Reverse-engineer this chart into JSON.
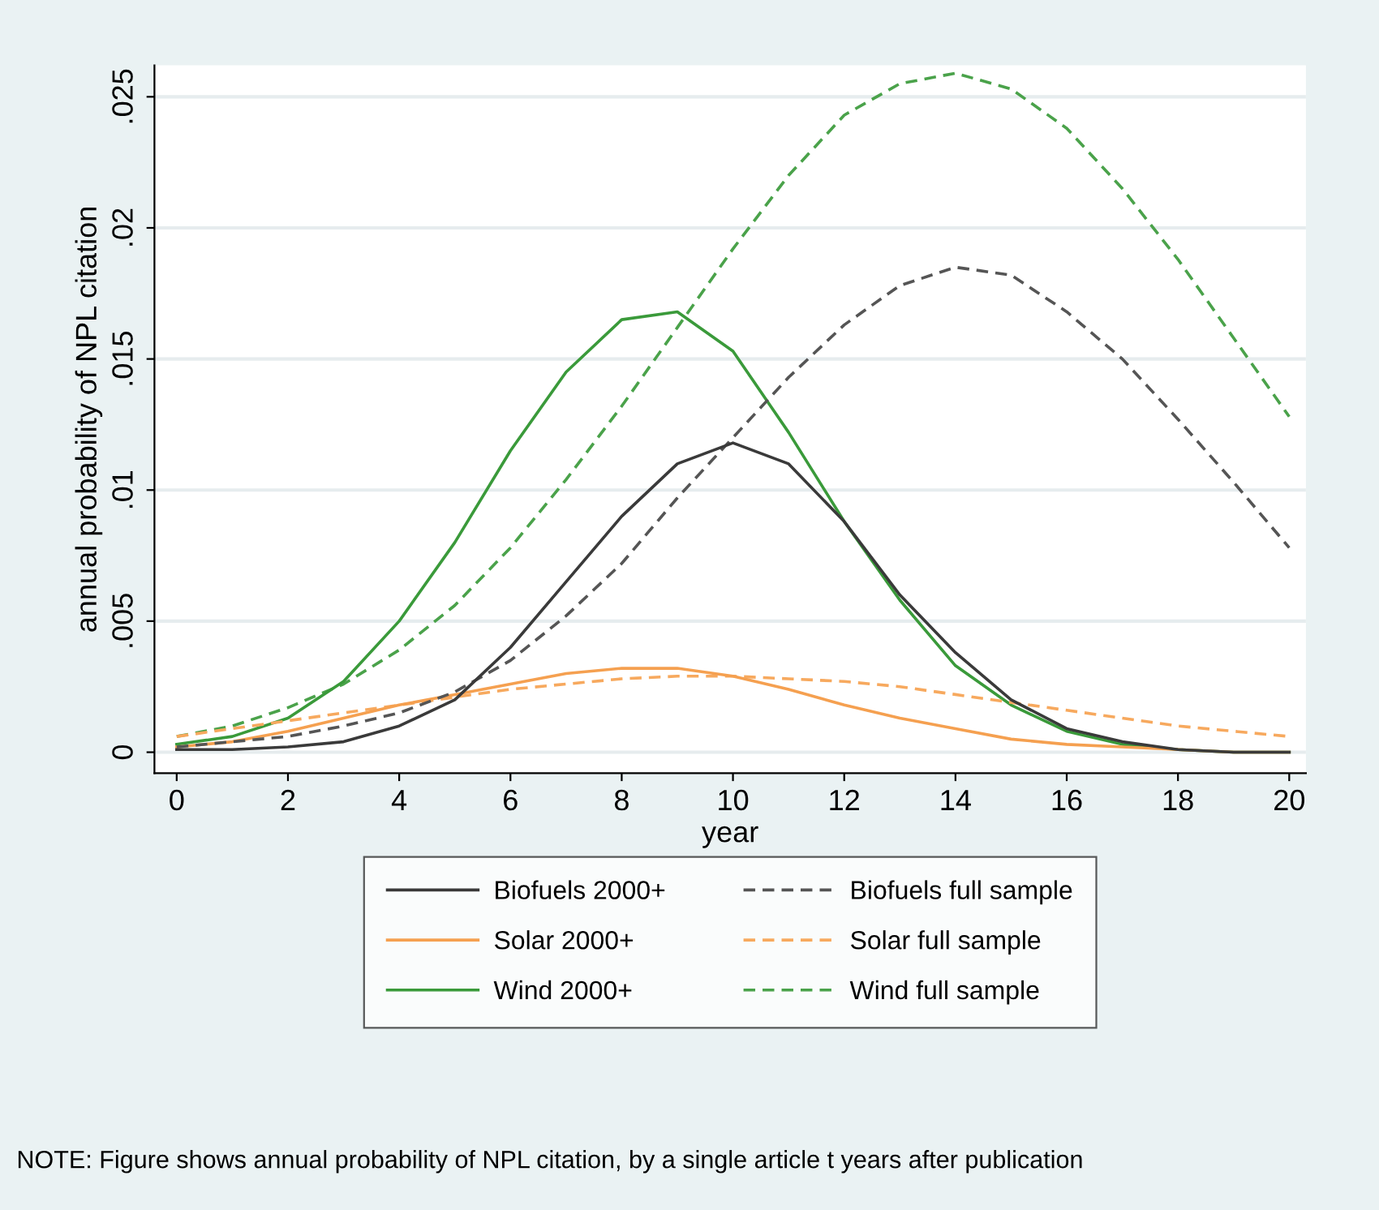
{
  "chart_data": {
    "type": "line",
    "xlabel": "year",
    "ylabel": "annual probability of NPL citation",
    "x": [
      0,
      1,
      2,
      3,
      4,
      5,
      6,
      7,
      8,
      9,
      10,
      11,
      12,
      13,
      14,
      15,
      16,
      17,
      18,
      19,
      20
    ],
    "series": [
      {
        "name": "Biofuels 2000+",
        "color": "#3a3a3a",
        "line_style": "solid",
        "values": [
          0.0001,
          0.0001,
          0.0002,
          0.0004,
          0.001,
          0.002,
          0.004,
          0.0065,
          0.009,
          0.011,
          0.0118,
          0.011,
          0.0088,
          0.006,
          0.0038,
          0.002,
          0.0009,
          0.0004,
          0.0001,
          0.0,
          0.0
        ]
      },
      {
        "name": "Biofuels full sample",
        "color": "#555555",
        "line_style": "dashed",
        "values": [
          0.0002,
          0.0004,
          0.0006,
          0.001,
          0.0015,
          0.0023,
          0.0035,
          0.0052,
          0.0072,
          0.0097,
          0.012,
          0.0143,
          0.0163,
          0.0178,
          0.0185,
          0.0182,
          0.0168,
          0.015,
          0.0127,
          0.0103,
          0.0078
        ]
      },
      {
        "name": "Solar 2000+",
        "color": "#f5a050",
        "line_style": "solid",
        "values": [
          0.0002,
          0.0004,
          0.0008,
          0.0013,
          0.0018,
          0.0022,
          0.0026,
          0.003,
          0.0032,
          0.0032,
          0.0029,
          0.0024,
          0.0018,
          0.0013,
          0.0009,
          0.0005,
          0.0003,
          0.0002,
          0.0001,
          0.0,
          0.0
        ]
      },
      {
        "name": "Solar full sample",
        "color": "#f7a95e",
        "line_style": "dashed",
        "values": [
          0.0006,
          0.0009,
          0.0012,
          0.0015,
          0.0018,
          0.0021,
          0.0024,
          0.0026,
          0.0028,
          0.0029,
          0.0029,
          0.0028,
          0.0027,
          0.0025,
          0.0022,
          0.0019,
          0.0016,
          0.0013,
          0.001,
          0.0008,
          0.0006
        ]
      },
      {
        "name": "Wind 2000+",
        "color": "#3a9a3a",
        "line_style": "solid",
        "values": [
          0.0003,
          0.0006,
          0.0013,
          0.0027,
          0.005,
          0.008,
          0.0115,
          0.0145,
          0.0165,
          0.0168,
          0.0153,
          0.0122,
          0.0088,
          0.0058,
          0.0033,
          0.0018,
          0.0008,
          0.0003,
          0.0001,
          0.0,
          0.0
        ]
      },
      {
        "name": "Wind full sample",
        "color": "#4aa24a",
        "line_style": "dashed",
        "values": [
          0.0006,
          0.001,
          0.0017,
          0.0026,
          0.0039,
          0.0056,
          0.0078,
          0.0104,
          0.0132,
          0.0162,
          0.0192,
          0.022,
          0.0243,
          0.0255,
          0.0259,
          0.0253,
          0.0238,
          0.0215,
          0.0188,
          0.0158,
          0.0128
        ]
      }
    ],
    "xlim": [
      -0.4,
      20.3
    ],
    "xticks": [
      0,
      2,
      4,
      6,
      8,
      10,
      12,
      14,
      16,
      18,
      20
    ],
    "ylim": [
      -0.0008,
      0.0262
    ],
    "yticks": [
      0,
      {
        "value": 0.005,
        "label": ".005"
      },
      {
        "value": 0.01,
        "label": ".01"
      },
      {
        "value": 0.015,
        "label": ".015"
      },
      {
        "value": 0.02,
        "label": ".02"
      },
      {
        "value": 0.025,
        "label": ".025"
      }
    ],
    "grid": "y",
    "legend": "bottom",
    "marker": "none",
    "annotations": [
      "NOTE: Figure shows annual probability of NPL citation, by a single article t years after publication"
    ]
  }
}
